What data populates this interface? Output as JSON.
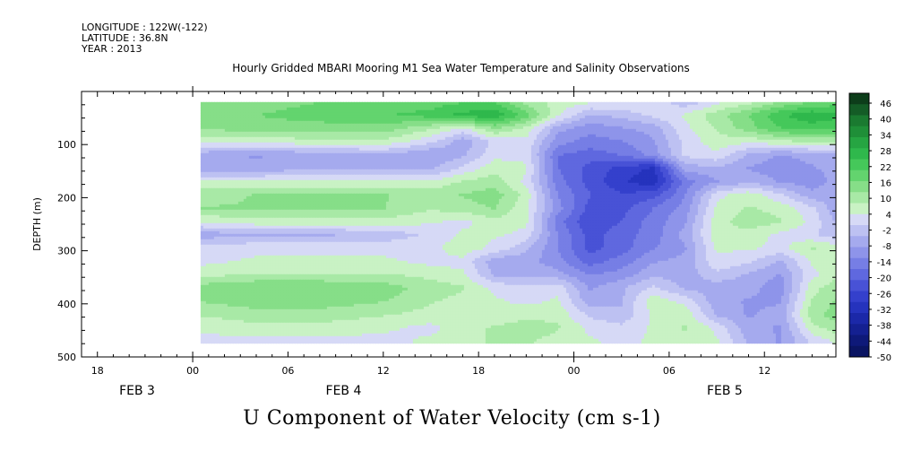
{
  "header": {
    "longitude": "LONGITUDE : 122W(-122)",
    "latitude": "LATITUDE : 36.8N",
    "year": "YEAR : 2013"
  },
  "chart_data": {
    "type": "heatmap",
    "title": "Hourly Gridded MBARI Mooring M1 Sea Water Temperature and Salinity Observations",
    "bottom_title": "U Component of Water Velocity (cm s-1)",
    "ylabel": "DEPTH (m)",
    "x_tick_labels": [
      "18",
      "00",
      "06",
      "12",
      "18",
      "00",
      "06",
      "12"
    ],
    "x_hours": [
      -6,
      0,
      6,
      12,
      18,
      24,
      30,
      36
    ],
    "x_range_hours": [
      -7,
      40.5
    ],
    "x_data_range_hours": [
      0.5,
      40.5
    ],
    "date_labels": [
      {
        "label": "FEB  3",
        "hour": -3.5
      },
      {
        "label": "FEB  4",
        "hour": 9.5
      },
      {
        "label": "FEB  5",
        "hour": 33.5
      }
    ],
    "ylim": [
      500,
      0
    ],
    "y_ticks": [
      100,
      200,
      300,
      400,
      500
    ],
    "y_data_range": [
      20,
      475
    ],
    "colorbar_levels": [
      46,
      40,
      34,
      28,
      22,
      16,
      10,
      4,
      -2,
      -8,
      -14,
      -20,
      -26,
      -32,
      -38,
      -44,
      -50
    ],
    "colorbar_colors": [
      "#0d3d1a",
      "#145c26",
      "#1a7a30",
      "#1f8f38",
      "#26a542",
      "#2fb84c",
      "#45c85a",
      "#63d46e",
      "#86de88",
      "#a8e9a6",
      "#c9f2c4",
      "#d6d9f6",
      "#bdc1f2",
      "#a5aaee",
      "#8e94ea",
      "#767ee5",
      "#5f68df",
      "#4852d6",
      "#3440cc",
      "#2533bd",
      "#1b28a8",
      "#142091",
      "#0e1979",
      "#0a1462"
    ],
    "depths_m": [
      20,
      45,
      70,
      95,
      120,
      145,
      170,
      195,
      220,
      245,
      270,
      295,
      320,
      345,
      370,
      395,
      420,
      445,
      470
    ],
    "times_h": [
      0.5,
      4,
      8,
      12,
      15,
      17,
      19,
      21,
      23,
      25,
      27,
      29,
      31,
      33,
      35,
      37,
      39,
      40.5
    ],
    "u_values": [
      [
        14,
        16,
        18,
        18,
        20,
        22,
        22,
        12,
        8,
        6,
        6,
        4,
        -2,
        4,
        8,
        14,
        18,
        20
      ],
      [
        16,
        18,
        20,
        22,
        24,
        28,
        30,
        20,
        6,
        -4,
        -2,
        2,
        6,
        12,
        18,
        26,
        30,
        28
      ],
      [
        14,
        16,
        16,
        16,
        10,
        4,
        14,
        8,
        -6,
        -10,
        -8,
        -6,
        4,
        10,
        16,
        22,
        24,
        22
      ],
      [
        6,
        6,
        8,
        8,
        2,
        -6,
        2,
        4,
        -10,
        -14,
        -12,
        -8,
        2,
        8,
        6,
        8,
        10,
        10
      ],
      [
        -6,
        -8,
        -6,
        -4,
        -8,
        -4,
        4,
        4,
        -16,
        -18,
        -16,
        -10,
        2,
        4,
        -4,
        -8,
        -6,
        -4
      ],
      [
        -6,
        -6,
        -4,
        -4,
        -4,
        2,
        8,
        6,
        -16,
        -22,
        -26,
        -30,
        -6,
        -4,
        -8,
        -10,
        -8,
        -6
      ],
      [
        6,
        6,
        6,
        6,
        6,
        10,
        12,
        4,
        -14,
        -22,
        -28,
        -32,
        -14,
        -8,
        -4,
        -8,
        -10,
        -6
      ],
      [
        12,
        14,
        14,
        14,
        12,
        14,
        16,
        8,
        -12,
        -20,
        -24,
        -22,
        -12,
        4,
        8,
        2,
        -6,
        -4
      ],
      [
        14,
        14,
        14,
        14,
        10,
        12,
        14,
        6,
        -10,
        -22,
        -22,
        -16,
        -10,
        6,
        10,
        8,
        2,
        -6
      ],
      [
        6,
        8,
        8,
        8,
        6,
        4,
        8,
        6,
        -14,
        -24,
        -20,
        -14,
        -8,
        8,
        12,
        10,
        4,
        -4
      ],
      [
        -6,
        -4,
        -4,
        -2,
        2,
        6,
        6,
        4,
        -12,
        -22,
        -18,
        -14,
        -6,
        8,
        8,
        4,
        2,
        -2
      ],
      [
        4,
        4,
        4,
        4,
        4,
        8,
        4,
        -2,
        -12,
        -22,
        -18,
        -12,
        -8,
        6,
        6,
        4,
        10,
        8
      ],
      [
        4,
        6,
        6,
        6,
        4,
        4,
        -6,
        -6,
        -10,
        -18,
        -14,
        -8,
        -6,
        4,
        2,
        -4,
        6,
        10
      ],
      [
        8,
        10,
        10,
        10,
        8,
        6,
        -4,
        -4,
        -6,
        -12,
        -10,
        -4,
        -6,
        0,
        -4,
        -8,
        4,
        8
      ],
      [
        16,
        18,
        18,
        16,
        12,
        10,
        4,
        2,
        4,
        -8,
        -4,
        2,
        -4,
        -6,
        -6,
        -10,
        8,
        12
      ],
      [
        14,
        16,
        16,
        14,
        10,
        8,
        6,
        4,
        6,
        -6,
        -4,
        8,
        4,
        -6,
        -8,
        -8,
        10,
        14
      ],
      [
        10,
        12,
        12,
        10,
        8,
        6,
        6,
        8,
        8,
        0,
        -2,
        6,
        8,
        -4,
        -8,
        -6,
        12,
        16
      ],
      [
        6,
        8,
        8,
        6,
        4,
        8,
        10,
        12,
        10,
        4,
        2,
        6,
        10,
        4,
        -6,
        -8,
        8,
        12
      ],
      [
        4,
        4,
        4,
        4,
        6,
        8,
        10,
        10,
        8,
        6,
        4,
        6,
        8,
        6,
        -4,
        -8,
        2,
        6
      ]
    ]
  }
}
